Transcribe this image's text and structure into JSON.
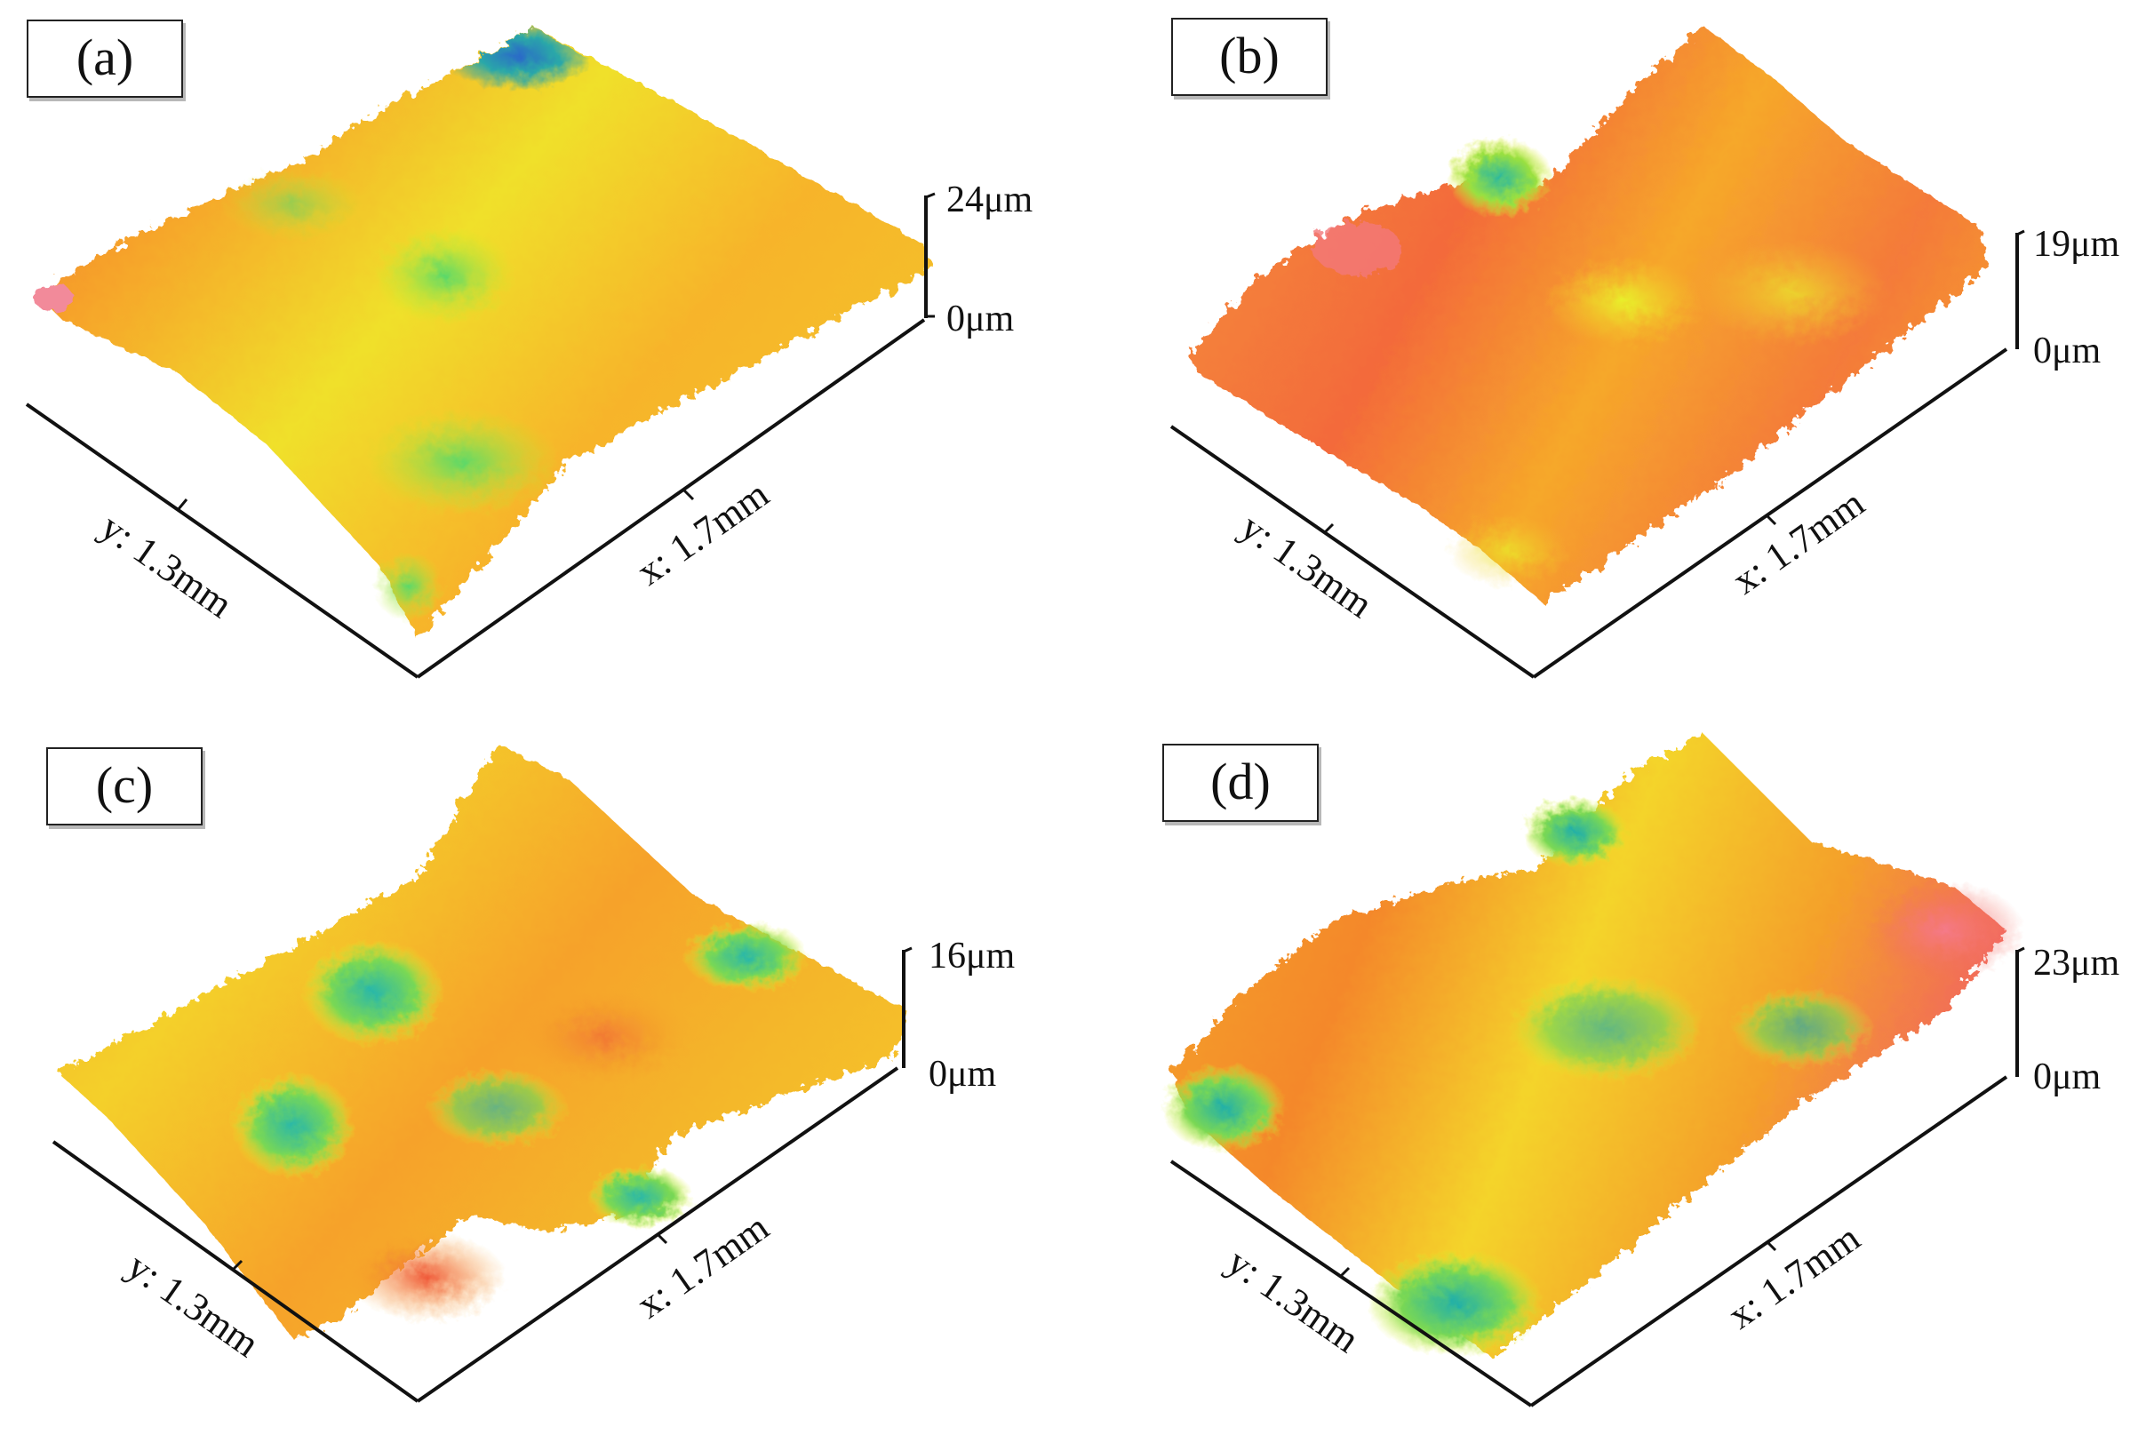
{
  "figure": {
    "panels": [
      {
        "id": "a",
        "label": "(a)",
        "z_max_label": "24μm",
        "z_min_label": "0μm",
        "x_axis_label": "x: 1.7mm",
        "y_axis_label": "y: 1.3mm",
        "height_colors": [
          "#f07a2a",
          "#f6a52a",
          "#f4d82a",
          "#e8f52a",
          "#9ae63a",
          "#4ad07a",
          "#2a9ad0",
          "#2a70c8"
        ]
      },
      {
        "id": "b",
        "label": "(b)",
        "z_max_label": "19μm",
        "z_min_label": "0μm",
        "x_axis_label": "x: 1.7mm",
        "y_axis_label": "y: 1.3mm",
        "height_colors": [
          "#f56a4a",
          "#f4803a",
          "#f6a22a",
          "#f5c82a",
          "#e8f02a",
          "#7ad85a",
          "#2ab8a0"
        ]
      },
      {
        "id": "c",
        "label": "(c)",
        "z_max_label": "16μm",
        "z_min_label": "0μm",
        "x_axis_label": "x: 1.7mm",
        "y_axis_label": "y: 1.3mm",
        "height_colors": [
          "#f4703a",
          "#f6a22a",
          "#f4d02a",
          "#e8f42a",
          "#8ae040",
          "#3ac88a",
          "#2aa8c0"
        ]
      },
      {
        "id": "d",
        "label": "(d)",
        "z_max_label": "23μm",
        "z_min_label": "0μm",
        "x_axis_label": "x: 1.7mm",
        "y_axis_label": "y: 1.3mm",
        "height_colors": [
          "#f26a5a",
          "#f4883a",
          "#f6aa2a",
          "#f4d42a",
          "#e4f42a",
          "#8ae044",
          "#32c88c",
          "#22b0b0"
        ]
      }
    ]
  }
}
